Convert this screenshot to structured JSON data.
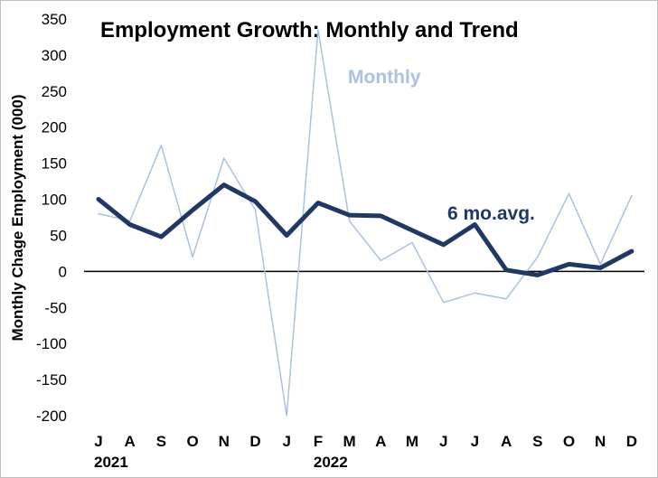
{
  "chart_data": {
    "type": "line",
    "title": "Employment Growth: Monthly and Trend",
    "ylabel": "Monthly Chage Employment (000)",
    "xlabel": "",
    "ylim": [
      -200,
      350
    ],
    "yticks": [
      350,
      300,
      250,
      200,
      150,
      100,
      50,
      0,
      -50,
      -100,
      -150,
      -200
    ],
    "categories": [
      "J",
      "A",
      "S",
      "O",
      "N",
      "D",
      "J",
      "F",
      "M",
      "A",
      "M",
      "J",
      "J",
      "A",
      "S",
      "O",
      "N",
      "D"
    ],
    "year_labels": [
      {
        "index": 0,
        "label": "2021"
      },
      {
        "index": 7,
        "label": "2022"
      }
    ],
    "grid": false,
    "zero_line": true,
    "series": [
      {
        "name": "Monthly",
        "color": "#a9c1e3",
        "values": [
          80,
          70,
          175,
          20,
          157,
          85,
          -200,
          335,
          70,
          15,
          40,
          -43,
          -30,
          -38,
          20,
          108,
          10,
          105
        ]
      },
      {
        "name": "6 mo.avg.",
        "color": "#1f3864",
        "values": [
          100,
          65,
          48,
          85,
          120,
          97,
          50,
          95,
          78,
          77,
          57,
          37,
          65,
          2,
          -5,
          10,
          5,
          28
        ]
      }
    ]
  }
}
